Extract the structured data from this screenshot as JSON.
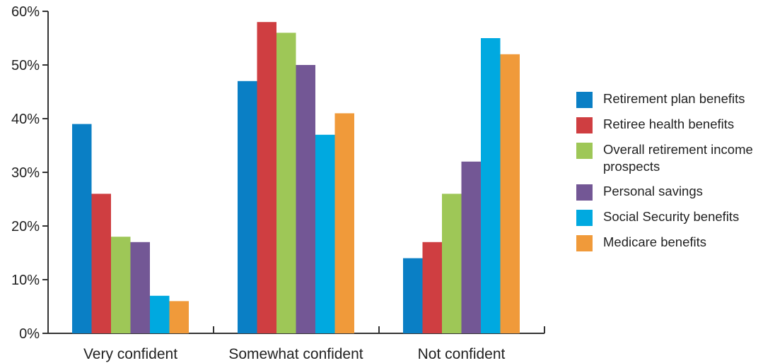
{
  "chart_data": {
    "type": "bar",
    "categories": [
      "Very confident",
      "Somewhat confident",
      "Not confident"
    ],
    "series": [
      {
        "name": "Retirement plan benefits",
        "color": "#0a7fc5",
        "values": [
          39,
          47,
          14
        ]
      },
      {
        "name": "Retiree health benefits",
        "color": "#cf3e41",
        "values": [
          26,
          58,
          17
        ]
      },
      {
        "name": "Overall retirement income prospects",
        "color": "#9ec757",
        "values": [
          18,
          56,
          26
        ]
      },
      {
        "name": "Personal savings",
        "color": "#735795",
        "values": [
          17,
          50,
          32
        ]
      },
      {
        "name": "Social Security benefits",
        "color": "#00a9e0",
        "values": [
          7,
          37,
          55
        ]
      },
      {
        "name": "Medicare benefits",
        "color": "#f09a3a",
        "values": [
          6,
          41,
          52
        ]
      }
    ],
    "yticks": [
      0,
      10,
      20,
      30,
      40,
      50,
      60
    ],
    "ytick_labels": [
      "0%",
      "10%",
      "20%",
      "30%",
      "40%",
      "50%",
      "60%"
    ],
    "ylim": [
      0,
      60
    ],
    "title": "",
    "xlabel": "",
    "ylabel": "",
    "grid": false,
    "legend_position": "right"
  }
}
